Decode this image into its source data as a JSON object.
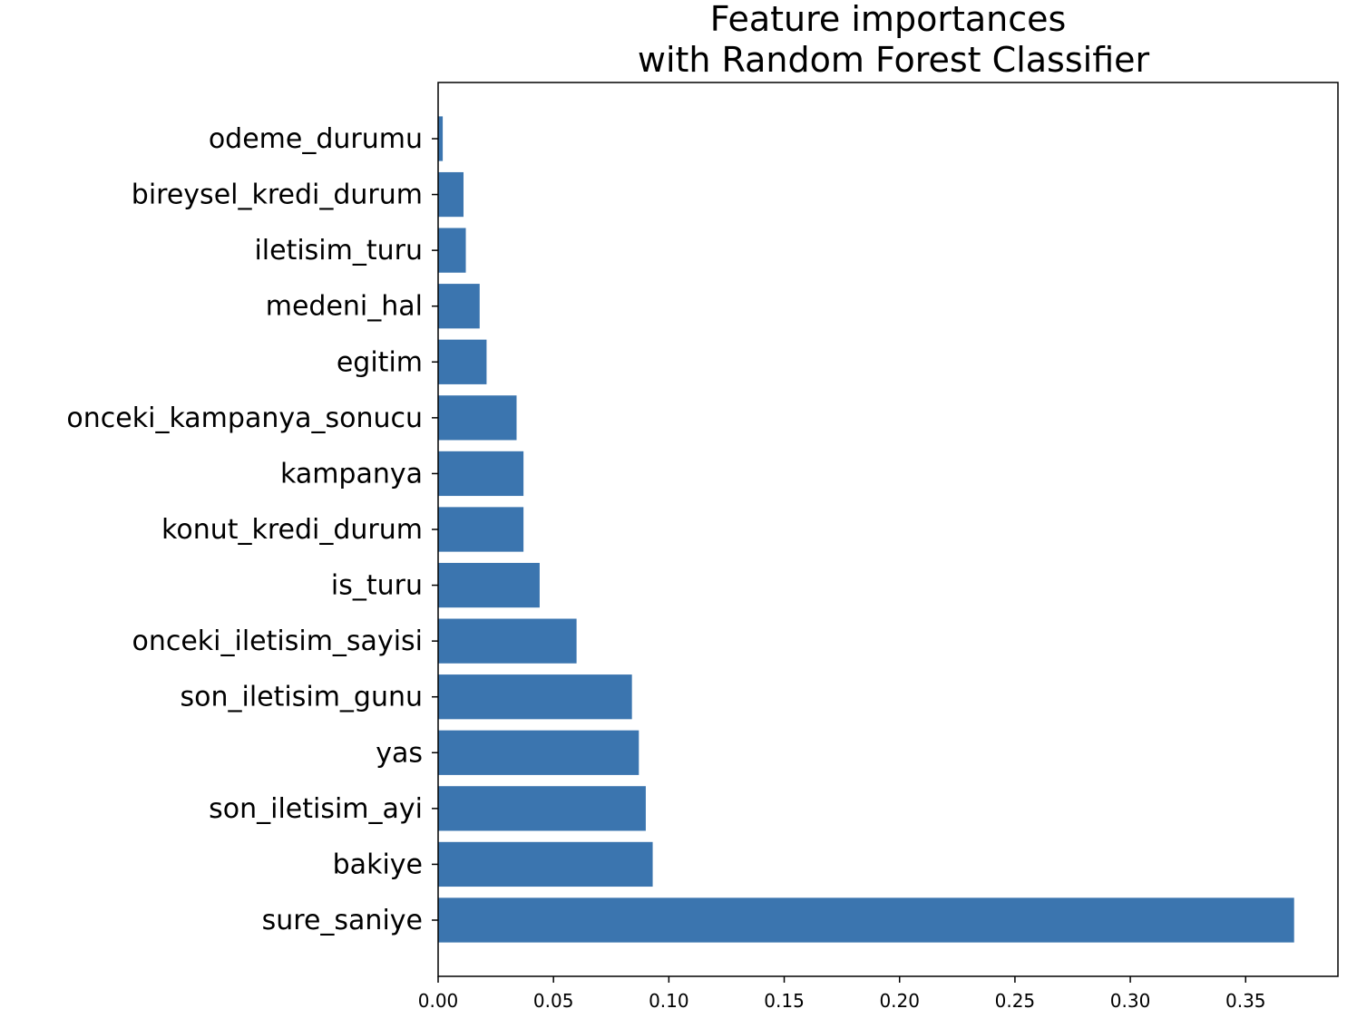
{
  "chart_data": {
    "type": "bar",
    "orientation": "horizontal",
    "title": [
      "Feature importances",
      "with Random Forest Classifier"
    ],
    "xlabel": "",
    "ylabel": "",
    "xlim": [
      0,
      0.39
    ],
    "xticks": [
      "0.00",
      "0.05",
      "0.10",
      "0.15",
      "0.20",
      "0.25",
      "0.30",
      "0.35"
    ],
    "grid": false,
    "legend": "none",
    "bar_color": "#3b75af",
    "categories": [
      "sure_saniye",
      "bakiye",
      "son_iletisim_ayi",
      "yas",
      "son_iletisim_gunu",
      "onceki_iletisim_sayisi",
      "is_turu",
      "konut_kredi_durum",
      "kampanya",
      "onceki_kampanya_sonucu",
      "egitim",
      "medeni_hal",
      "iletisim_turu",
      "bireysel_kredi_durum",
      "odeme_durumu"
    ],
    "values": [
      0.371,
      0.093,
      0.09,
      0.087,
      0.084,
      0.06,
      0.044,
      0.037,
      0.037,
      0.034,
      0.021,
      0.018,
      0.012,
      0.011,
      0.002
    ]
  }
}
